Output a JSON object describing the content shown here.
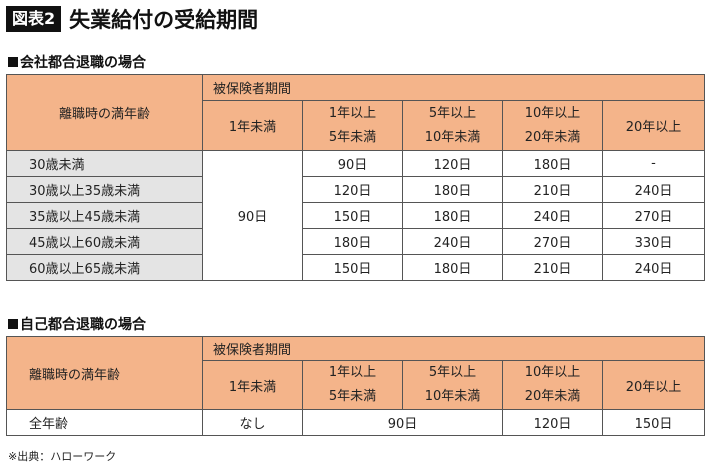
{
  "figure": {
    "badge": "図表2",
    "title": "失業給付の受給期間"
  },
  "section1": {
    "heading": "会社都合退職の場合",
    "row_header": "離職時の満年齢",
    "group_header": "被保険者期間",
    "columns": [
      {
        "line1": "1年未満",
        "line2": ""
      },
      {
        "line1": "1年以上",
        "line2": "5年未満"
      },
      {
        "line1": "5年以上",
        "line2": "10年未満"
      },
      {
        "line1": "10年以上",
        "line2": "20年未満"
      },
      {
        "line1": "20年以上",
        "line2": ""
      }
    ],
    "merged_under_1year": "90日",
    "rows": [
      {
        "age": "30歳未満",
        "values": [
          "90日",
          "120日",
          "180日",
          "-"
        ]
      },
      {
        "age": "30歳以上35歳未満",
        "values": [
          "120日",
          "180日",
          "210日",
          "240日"
        ]
      },
      {
        "age": "35歳以上45歳未満",
        "values": [
          "150日",
          "180日",
          "240日",
          "270日"
        ]
      },
      {
        "age": "45歳以上60歳未満",
        "values": [
          "180日",
          "240日",
          "270日",
          "330日"
        ]
      },
      {
        "age": "60歳以上65歳未満",
        "values": [
          "150日",
          "180日",
          "210日",
          "240日"
        ]
      }
    ]
  },
  "section2": {
    "heading": "自己都合退職の場合",
    "row_header": "離職時の満年齢",
    "group_header": "被保険者期間",
    "columns": [
      {
        "line1": "1年未満",
        "line2": ""
      },
      {
        "line1": "1年以上",
        "line2": "5年未満"
      },
      {
        "line1": "5年以上",
        "line2": "10年未満"
      },
      {
        "line1": "10年以上",
        "line2": "20年未満"
      },
      {
        "line1": "20年以上",
        "line2": ""
      }
    ],
    "row": {
      "age": "全年齢",
      "under_1year": "なし",
      "one_to_ten": "90日",
      "ten_to_twenty": "120日",
      "twenty_plus": "150日"
    }
  },
  "source": "※出典：ハローワーク"
}
